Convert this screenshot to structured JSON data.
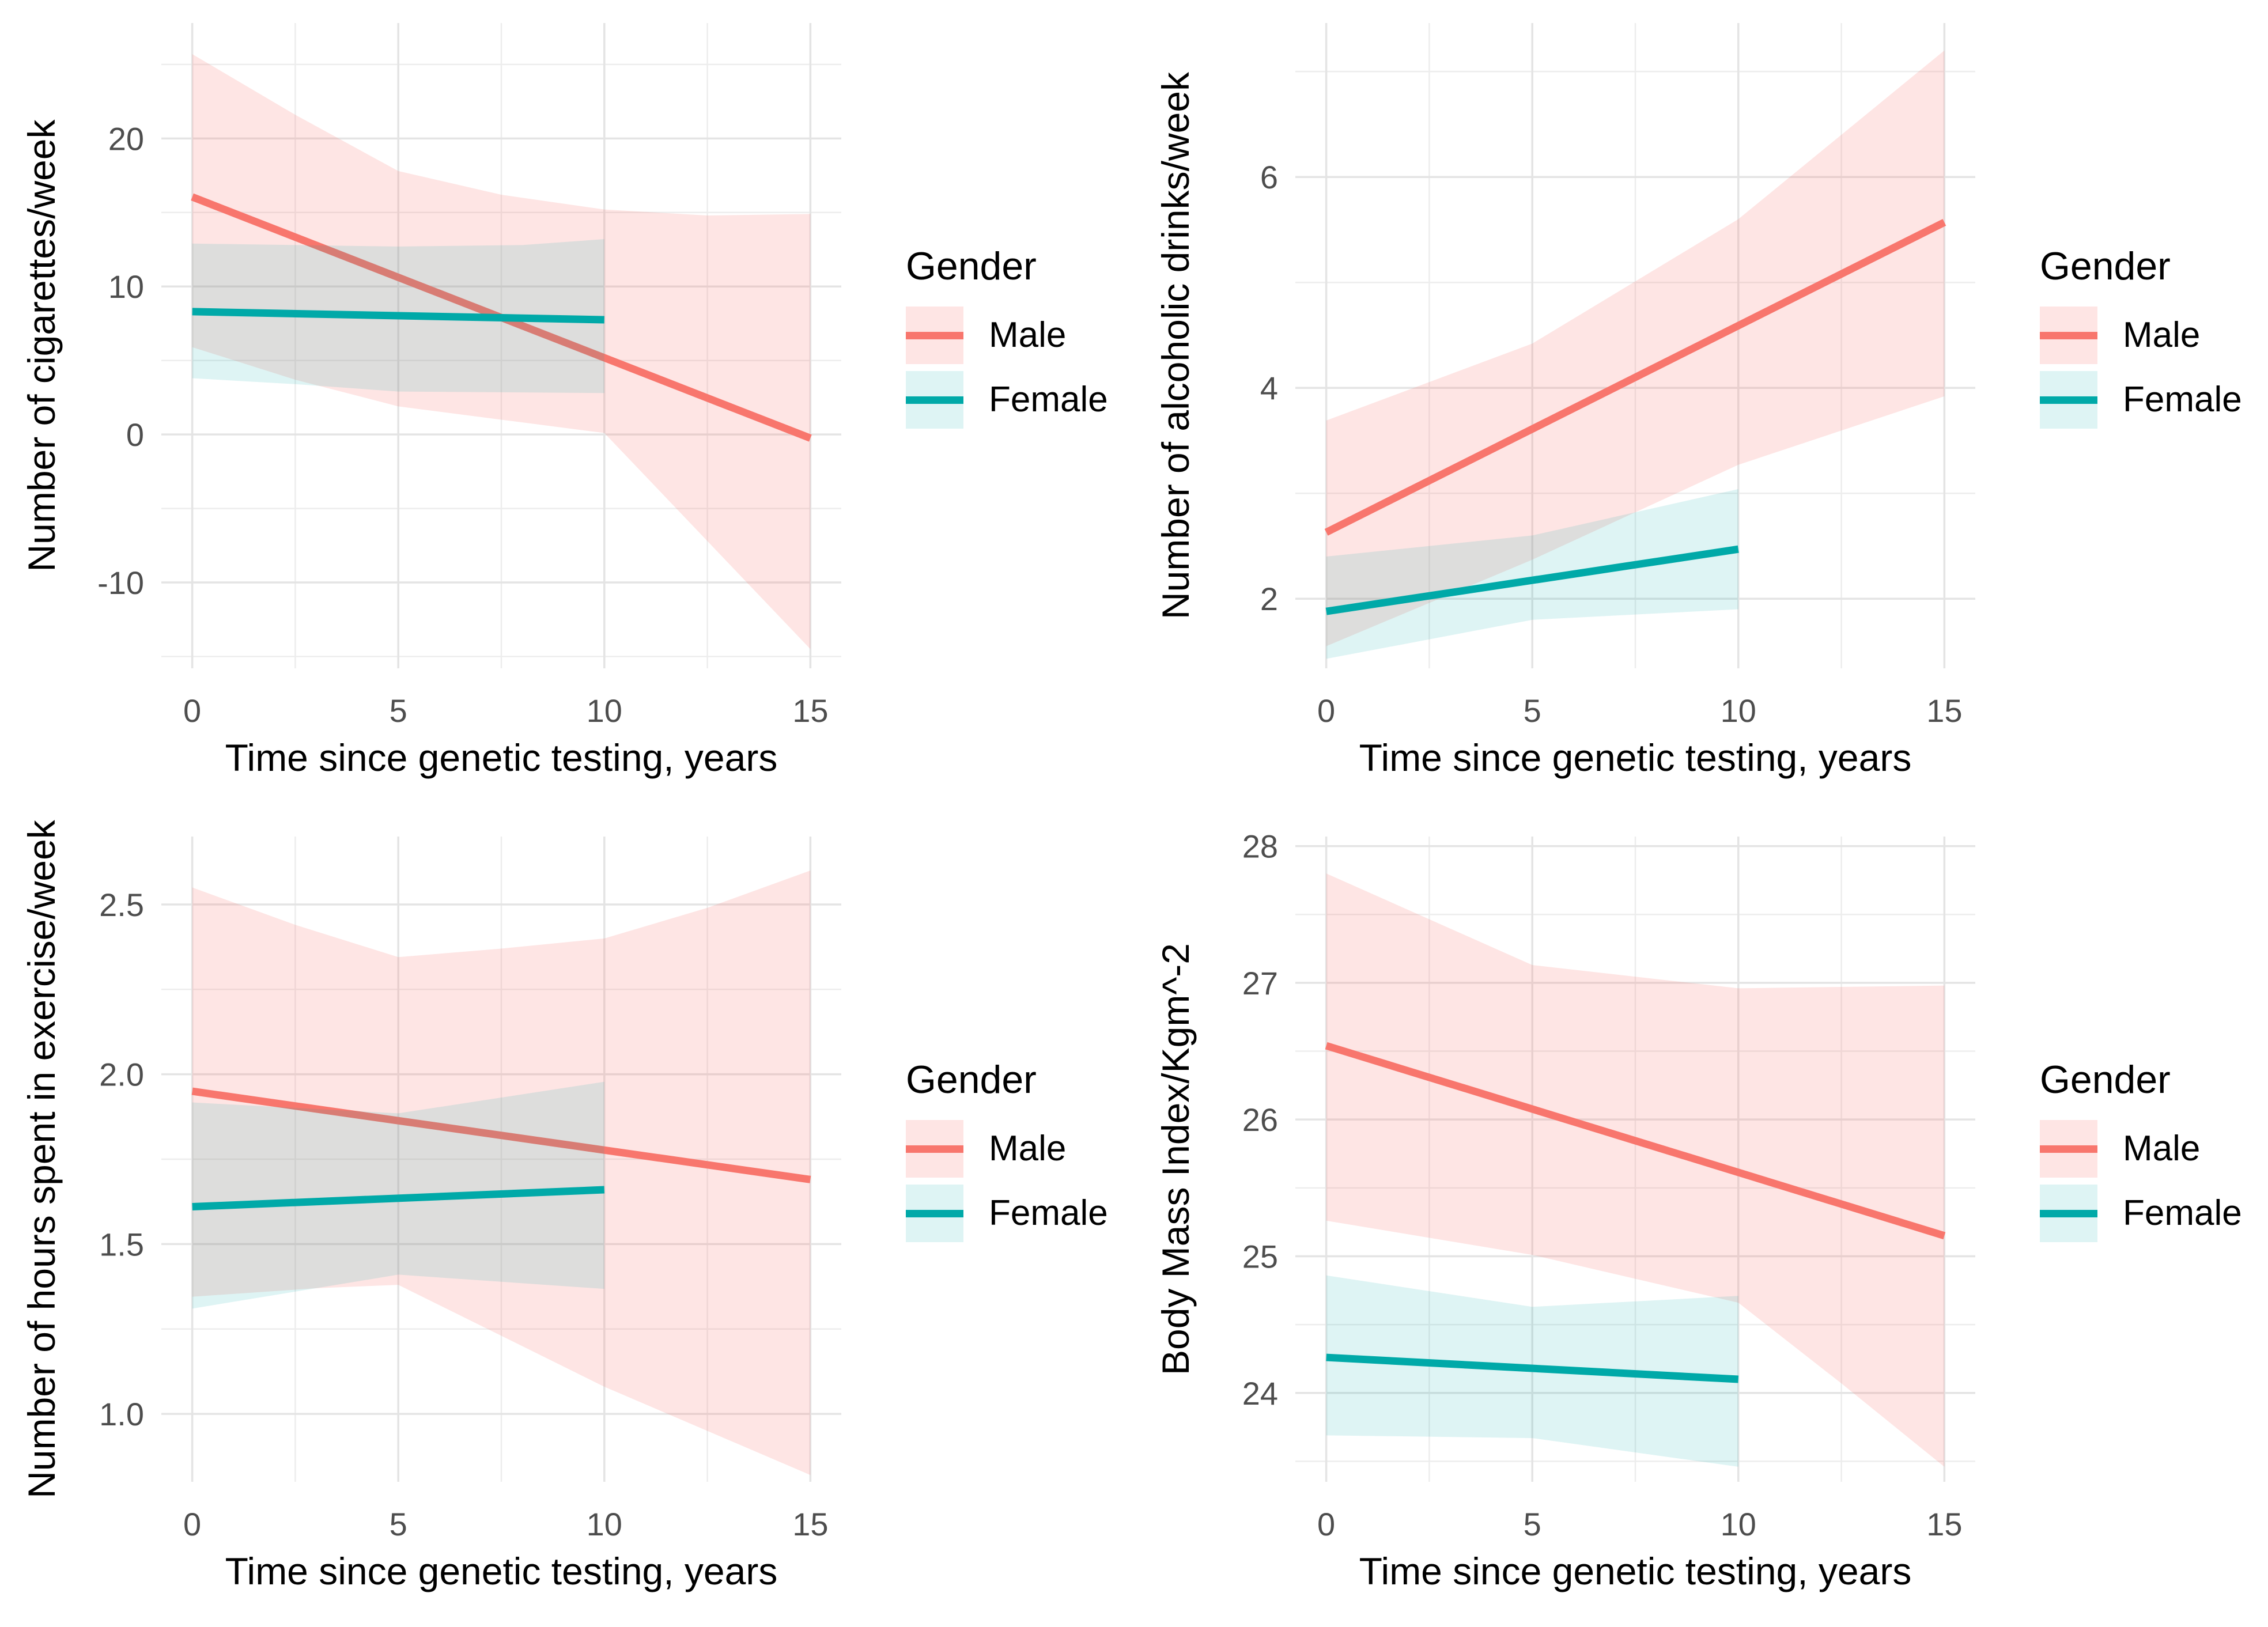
{
  "theme": {
    "background": "#FFFFFF",
    "grid_major": "#E4E4E4",
    "grid_minor": "#EDEDED",
    "tick_label_color": "#4D4D4D",
    "text_color": "#000000",
    "male_color": "#F8766D",
    "female_color": "#00A9A8"
  },
  "chart_data": [
    {
      "id": "cigarettes",
      "type": "line",
      "xlabel": "Time since genetic testing, years",
      "ylabel": "Number of cigarettes/week",
      "xlim": [
        -0.75,
        15.75
      ],
      "x_ticks": [
        0,
        5,
        10,
        15
      ],
      "x_minor": [
        2.5,
        7.5,
        12.5
      ],
      "ylim": [
        -15.8,
        27.8
      ],
      "y_ticks": [
        -10,
        0,
        10,
        20
      ],
      "y_minor": [
        -15,
        -5,
        5,
        15,
        25
      ],
      "y_tick_decimals": 0,
      "legend": {
        "title": "Gender",
        "entries": [
          {
            "label": "Male"
          },
          {
            "label": "Female"
          }
        ]
      },
      "series": [
        {
          "name": "Male",
          "color": "#F8766D",
          "fill": "rgba(248,118,109,0.19)",
          "line": [
            [
              0,
              16.05
            ],
            [
              15,
              -0.25
            ]
          ],
          "ribbon_upper": [
            [
              0,
              25.7
            ],
            [
              2.5,
              21.6
            ],
            [
              5,
              17.8
            ],
            [
              7.5,
              16.2
            ],
            [
              10,
              15.2
            ],
            [
              12.5,
              14.8
            ],
            [
              15,
              14.9
            ]
          ],
          "ribbon_lower": [
            [
              0,
              5.9
            ],
            [
              2.5,
              3.7
            ],
            [
              5,
              1.9
            ],
            [
              7.5,
              1.0
            ],
            [
              10,
              0.1
            ],
            [
              12.5,
              -7.2
            ],
            [
              15,
              -14.5
            ]
          ]
        },
        {
          "name": "Female",
          "color": "#00A9A8",
          "fill": "rgba(0,169,168,0.13)",
          "line": [
            [
              0,
              8.3
            ],
            [
              10,
              7.75
            ]
          ],
          "ribbon_upper": [
            [
              0,
              12.9
            ],
            [
              5,
              12.7
            ],
            [
              8,
              12.8
            ],
            [
              10,
              13.2
            ]
          ],
          "ribbon_lower": [
            [
              0,
              3.8
            ],
            [
              2.5,
              3.4
            ],
            [
              5,
              2.9
            ],
            [
              7.5,
              2.85
            ],
            [
              10,
              2.8
            ]
          ]
        }
      ]
    },
    {
      "id": "alcoholic-drinks",
      "type": "line",
      "xlabel": "Time since genetic testing, years",
      "ylabel": "Number of alcoholic drinks/week",
      "xlim": [
        -0.75,
        15.75
      ],
      "x_ticks": [
        0,
        5,
        10,
        15
      ],
      "x_minor": [
        2.5,
        7.5,
        12.5
      ],
      "ylim": [
        1.34,
        7.46
      ],
      "y_ticks": [
        2,
        4,
        6
      ],
      "y_minor": [
        3,
        5,
        7
      ],
      "y_tick_decimals": 0,
      "legend": {
        "title": "Gender",
        "entries": [
          {
            "label": "Male"
          },
          {
            "label": "Female"
          }
        ]
      },
      "series": [
        {
          "name": "Male",
          "color": "#F8766D",
          "fill": "rgba(248,118,109,0.19)",
          "line": [
            [
              0,
              2.63
            ],
            [
              15,
              5.57
            ]
          ],
          "ribbon_upper": [
            [
              0,
              3.69
            ],
            [
              5,
              4.42
            ],
            [
              10,
              5.6
            ],
            [
              15,
              7.2
            ]
          ],
          "ribbon_lower": [
            [
              0,
              1.55
            ],
            [
              5,
              2.37
            ],
            [
              10,
              3.27
            ],
            [
              15,
              3.92
            ]
          ]
        },
        {
          "name": "Female",
          "color": "#00A9A8",
          "fill": "rgba(0,169,168,0.13)",
          "line": [
            [
              0,
              1.88
            ],
            [
              10,
              2.47
            ]
          ],
          "ribbon_upper": [
            [
              0,
              2.4
            ],
            [
              5,
              2.6
            ],
            [
              10,
              3.04
            ]
          ],
          "ribbon_lower": [
            [
              0,
              1.43
            ],
            [
              5,
              1.8
            ],
            [
              10,
              1.9
            ]
          ]
        }
      ]
    },
    {
      "id": "exercise-hours",
      "type": "line",
      "xlabel": "Time since genetic testing, years",
      "ylabel": "Number of hours spent in exercise/week",
      "xlim": [
        -0.75,
        15.75
      ],
      "x_ticks": [
        0,
        5,
        10,
        15
      ],
      "x_minor": [
        2.5,
        7.5,
        12.5
      ],
      "ylim": [
        0.8,
        2.7
      ],
      "y_ticks": [
        1.0,
        1.5,
        2.0,
        2.5
      ],
      "y_minor": [
        1.25,
        1.75,
        2.25
      ],
      "y_tick_decimals": 1,
      "legend": {
        "title": "Gender",
        "entries": [
          {
            "label": "Male"
          },
          {
            "label": "Female"
          }
        ]
      },
      "series": [
        {
          "name": "Male",
          "color": "#F8766D",
          "fill": "rgba(248,118,109,0.19)",
          "line": [
            [
              0,
              1.95
            ],
            [
              15,
              1.69
            ]
          ],
          "ribbon_upper": [
            [
              0,
              2.55
            ],
            [
              2.5,
              2.44
            ],
            [
              5,
              2.345
            ],
            [
              7.5,
              2.37
            ],
            [
              10,
              2.4
            ],
            [
              12.5,
              2.49
            ],
            [
              15,
              2.6
            ]
          ],
          "ribbon_lower": [
            [
              0,
              1.345
            ],
            [
              3,
              1.37
            ],
            [
              5,
              1.38
            ],
            [
              7.5,
              1.23
            ],
            [
              10,
              1.08
            ],
            [
              12.5,
              0.95
            ],
            [
              15,
              0.82
            ]
          ]
        },
        {
          "name": "Female",
          "color": "#00A9A8",
          "fill": "rgba(0,169,168,0.13)",
          "line": [
            [
              0,
              1.61
            ],
            [
              10,
              1.66
            ]
          ],
          "ribbon_upper": [
            [
              0,
              1.917
            ],
            [
              5,
              1.885
            ],
            [
              10,
              1.978
            ]
          ],
          "ribbon_lower": [
            [
              0,
              1.31
            ],
            [
              5,
              1.41
            ],
            [
              10,
              1.368
            ]
          ]
        }
      ]
    },
    {
      "id": "bmi",
      "type": "line",
      "xlabel": "Time since genetic testing, years",
      "ylabel": "Body Mass Index/Kgm^-2",
      "xlim": [
        -0.75,
        15.75
      ],
      "x_ticks": [
        0,
        5,
        10,
        15
      ],
      "x_minor": [
        2.5,
        7.5,
        12.5
      ],
      "ylim": [
        23.35,
        28.07
      ],
      "y_ticks": [
        24,
        25,
        26,
        27,
        28
      ],
      "y_minor": [
        23.5,
        24.5,
        25.5,
        26.5,
        27.5
      ],
      "y_tick_decimals": 0,
      "legend": {
        "title": "Gender",
        "entries": [
          {
            "label": "Male"
          },
          {
            "label": "Female"
          }
        ]
      },
      "series": [
        {
          "name": "Male",
          "color": "#F8766D",
          "fill": "rgba(248,118,109,0.19)",
          "line": [
            [
              0,
              26.54
            ],
            [
              15,
              25.15
            ]
          ],
          "ribbon_upper": [
            [
              0,
              27.8
            ],
            [
              5,
              27.13
            ],
            [
              10,
              26.96
            ],
            [
              15,
              26.98
            ]
          ],
          "ribbon_lower": [
            [
              0,
              25.26
            ],
            [
              5,
              25.01
            ],
            [
              10,
              24.66
            ],
            [
              12.5,
              24.07
            ],
            [
              15,
              23.46
            ]
          ]
        },
        {
          "name": "Female",
          "color": "#00A9A8",
          "fill": "rgba(0,169,168,0.13)",
          "line": [
            [
              0,
              24.26
            ],
            [
              10,
              24.1
            ]
          ],
          "ribbon_upper": [
            [
              0,
              24.86
            ],
            [
              5,
              24.63
            ],
            [
              10,
              24.71
            ]
          ],
          "ribbon_lower": [
            [
              0,
              23.69
            ],
            [
              5,
              23.67
            ],
            [
              10,
              23.46
            ]
          ]
        }
      ]
    }
  ]
}
